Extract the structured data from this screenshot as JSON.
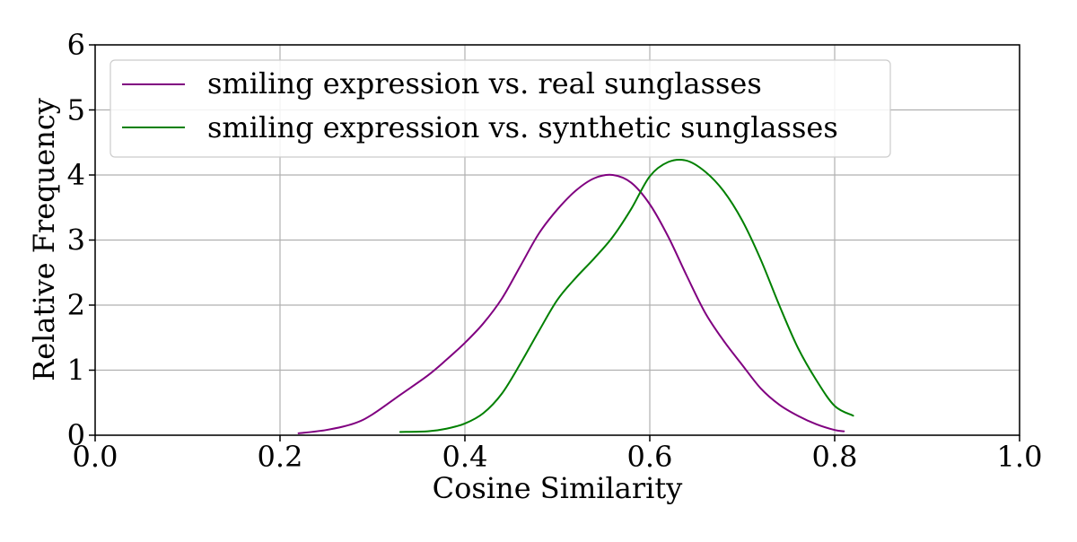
{
  "chart_data": {
    "type": "line",
    "title": "",
    "xlabel": "Cosine Similarity",
    "ylabel": "Relative Frequency",
    "xlim": [
      0.0,
      1.0
    ],
    "ylim": [
      0,
      6
    ],
    "xticks": [
      "0.0",
      "0.2",
      "0.4",
      "0.6",
      "0.8",
      "1.0"
    ],
    "yticks": [
      "0",
      "1",
      "2",
      "3",
      "4",
      "5",
      "6"
    ],
    "grid": true,
    "legend_position": "top-left",
    "series": [
      {
        "name": "smiling expression vs. real sunglasses",
        "color": "#800080",
        "x": [
          0.22,
          0.25,
          0.28,
          0.3,
          0.33,
          0.36,
          0.38,
          0.4,
          0.42,
          0.44,
          0.46,
          0.48,
          0.5,
          0.52,
          0.54,
          0.56,
          0.58,
          0.6,
          0.62,
          0.64,
          0.66,
          0.68,
          0.7,
          0.72,
          0.74,
          0.76,
          0.78,
          0.8,
          0.81
        ],
        "y": [
          0.03,
          0.08,
          0.18,
          0.32,
          0.62,
          0.92,
          1.16,
          1.42,
          1.72,
          2.1,
          2.6,
          3.1,
          3.47,
          3.76,
          3.95,
          4.0,
          3.88,
          3.55,
          3.05,
          2.45,
          1.88,
          1.45,
          1.08,
          0.72,
          0.47,
          0.3,
          0.17,
          0.08,
          0.06
        ]
      },
      {
        "name": "smiling expression vs. synthetic sunglasses",
        "color": "#008000",
        "x": [
          0.33,
          0.36,
          0.38,
          0.4,
          0.42,
          0.44,
          0.46,
          0.48,
          0.5,
          0.52,
          0.54,
          0.56,
          0.58,
          0.6,
          0.62,
          0.64,
          0.66,
          0.68,
          0.7,
          0.72,
          0.74,
          0.76,
          0.78,
          0.8,
          0.82
        ],
        "y": [
          0.05,
          0.06,
          0.1,
          0.18,
          0.34,
          0.64,
          1.1,
          1.6,
          2.08,
          2.42,
          2.72,
          3.05,
          3.48,
          3.98,
          4.2,
          4.22,
          4.05,
          3.75,
          3.3,
          2.7,
          2.0,
          1.35,
          0.85,
          0.45,
          0.3
        ]
      }
    ]
  }
}
